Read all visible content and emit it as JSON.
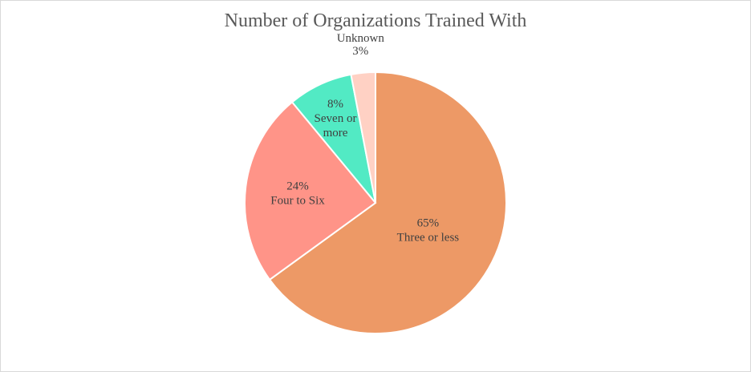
{
  "chart_data": {
    "type": "pie",
    "title": "Number of Organizations Trained With",
    "slices": [
      {
        "label": [
          "Three or less"
        ],
        "value": 65,
        "pct_label": "65%",
        "color": "#ED9966"
      },
      {
        "label": [
          "Four to Six"
        ],
        "value": 24,
        "pct_label": "24%",
        "color": "#FF9488"
      },
      {
        "label": [
          "Seven or",
          "more"
        ],
        "value": 8,
        "pct_label": "8%",
        "color": "#52EAC4"
      },
      {
        "label": [
          "Unknown"
        ],
        "value": 3,
        "pct_label": "3%",
        "color": "#FFD1C4"
      }
    ],
    "start_angle_deg": 0,
    "direction": "clockwise",
    "legend": "none"
  }
}
